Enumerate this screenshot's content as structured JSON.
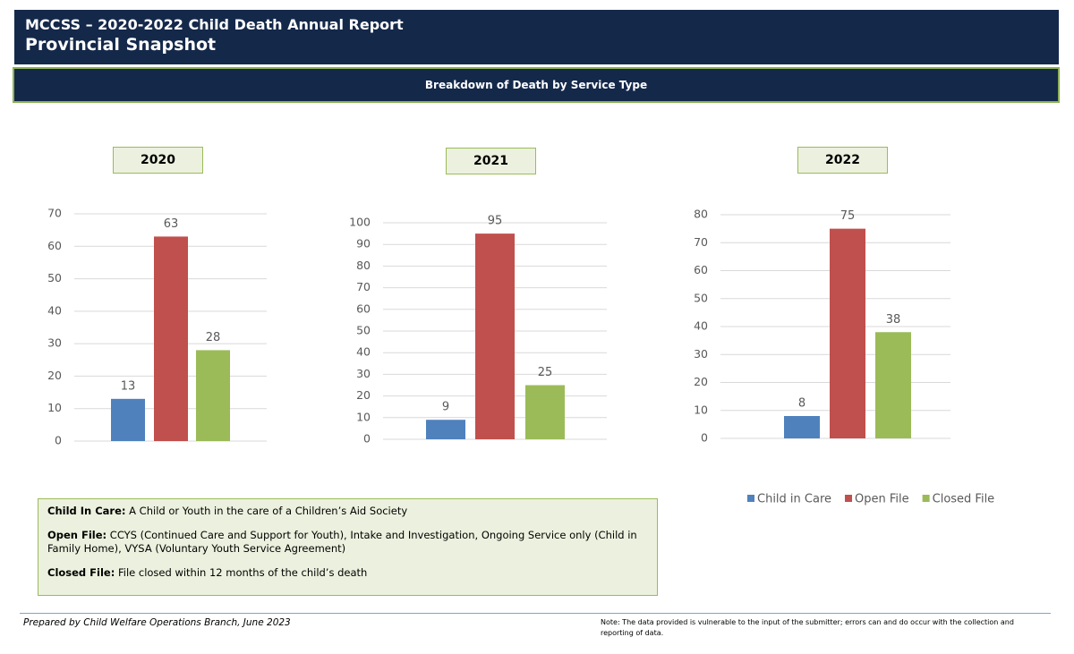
{
  "header": {
    "title": "MCCSS – 2020-2022 Child Death Annual Report",
    "subtitle": "Provincial Snapshot"
  },
  "banner": "Breakdown of Death by Service Type",
  "chart_data": [
    {
      "type": "bar",
      "title": "2020",
      "categories": [
        null,
        null,
        null
      ],
      "values": [
        13,
        63,
        28
      ],
      "colors": [
        "#4f81bd",
        "#c0504d",
        "#9bbb59"
      ],
      "ylim": [
        0,
        70
      ],
      "yticks": [
        0,
        10,
        20,
        30,
        40,
        50,
        60,
        70
      ],
      "grid": true,
      "data_labels": true
    },
    {
      "type": "bar",
      "title": "2021",
      "categories": [
        null,
        null,
        null
      ],
      "values": [
        9,
        95,
        25
      ],
      "colors": [
        "#4f81bd",
        "#c0504d",
        "#9bbb59"
      ],
      "ylim": [
        0,
        100
      ],
      "yticks": [
        0,
        10,
        20,
        30,
        40,
        50,
        60,
        70,
        80,
        90,
        100
      ],
      "grid": true,
      "data_labels": true
    },
    {
      "type": "bar",
      "title": "2022",
      "categories": [
        "Child in Care",
        "Open File",
        "Closed File"
      ],
      "values": [
        8,
        75,
        38
      ],
      "colors": [
        "#4f81bd",
        "#c0504d",
        "#9bbb59"
      ],
      "ylim": [
        0,
        80
      ],
      "yticks": [
        0,
        10,
        20,
        30,
        40,
        50,
        60,
        70,
        80
      ],
      "grid": true,
      "data_labels": true,
      "legend": "bottom"
    }
  ],
  "definitions": [
    {
      "term": "Child In Care:",
      "text": "A Child or Youth in the care of a Children’s Aid Society"
    },
    {
      "term": "Open File:",
      "text": "CCYS (Continued Care and Support for Youth), Intake and Investigation, Ongoing Service only (Child in Family Home), VYSA (Voluntary Youth Service Agreement)"
    },
    {
      "term": "Closed File:",
      "text": "File closed within 12 months of the child’s death"
    }
  ],
  "footer": {
    "prepared": "Prepared by Child Welfare Operations Branch, June 2023",
    "note": "Note: The data provided is vulnerable to the input of the submitter; errors can and do occur with the collection and reporting of data."
  }
}
